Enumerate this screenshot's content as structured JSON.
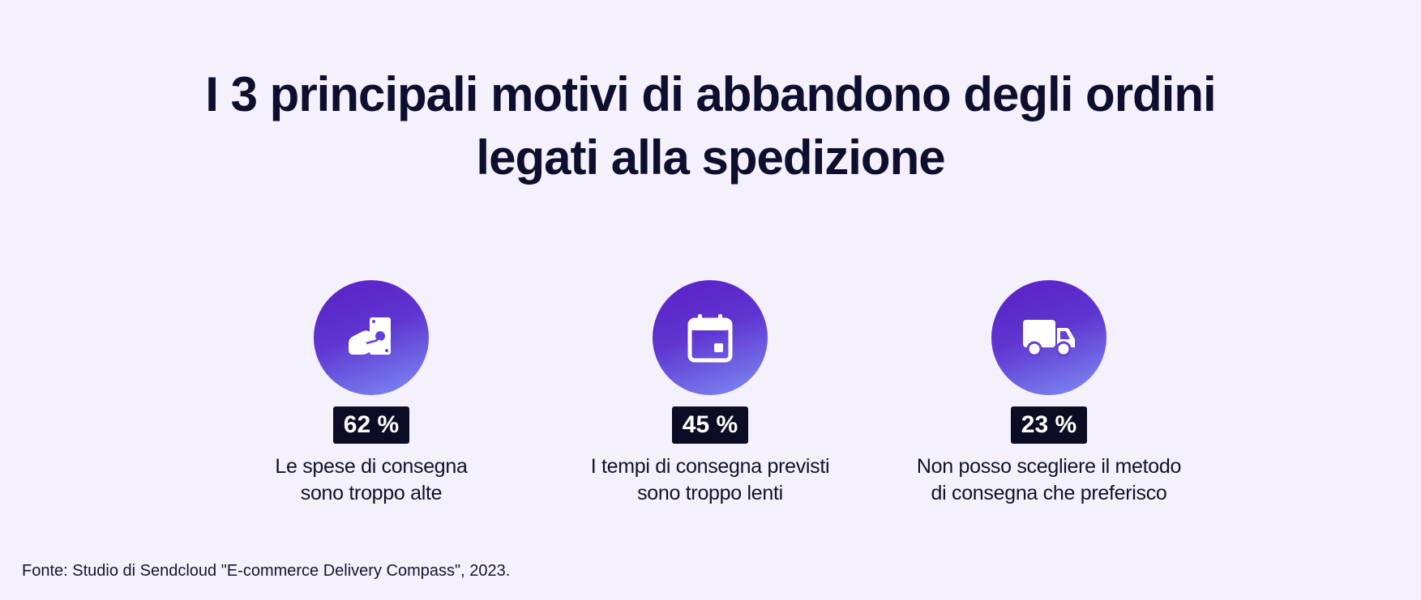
{
  "title": {
    "line1": "I 3 principali motivi di abbandono degli ordini",
    "line2": "legati alla spedizione"
  },
  "stats": [
    {
      "icon": "money-hand-icon",
      "percent": "62 %",
      "desc_line1": "Le spese di consegna",
      "desc_line2": "sono troppo alte"
    },
    {
      "icon": "calendar-icon",
      "percent": "45 %",
      "desc_line1": "I tempi di consegna previsti",
      "desc_line2": "sono troppo lenti"
    },
    {
      "icon": "delivery-truck-icon",
      "percent": "23 %",
      "desc_line1": "Non posso scegliere il metodo",
      "desc_line2": "di consegna che preferisco"
    }
  ],
  "source": "Fonte: Studio di Sendcloud \"E-commerce Delivery Compass\", 2023.",
  "colors": {
    "background": "#f4f1fc",
    "icon_gradient_start": "#5a1fc4",
    "icon_gradient_end": "#7e8ef5",
    "badge": "#0c0c24",
    "text": "#0e0f2e"
  }
}
